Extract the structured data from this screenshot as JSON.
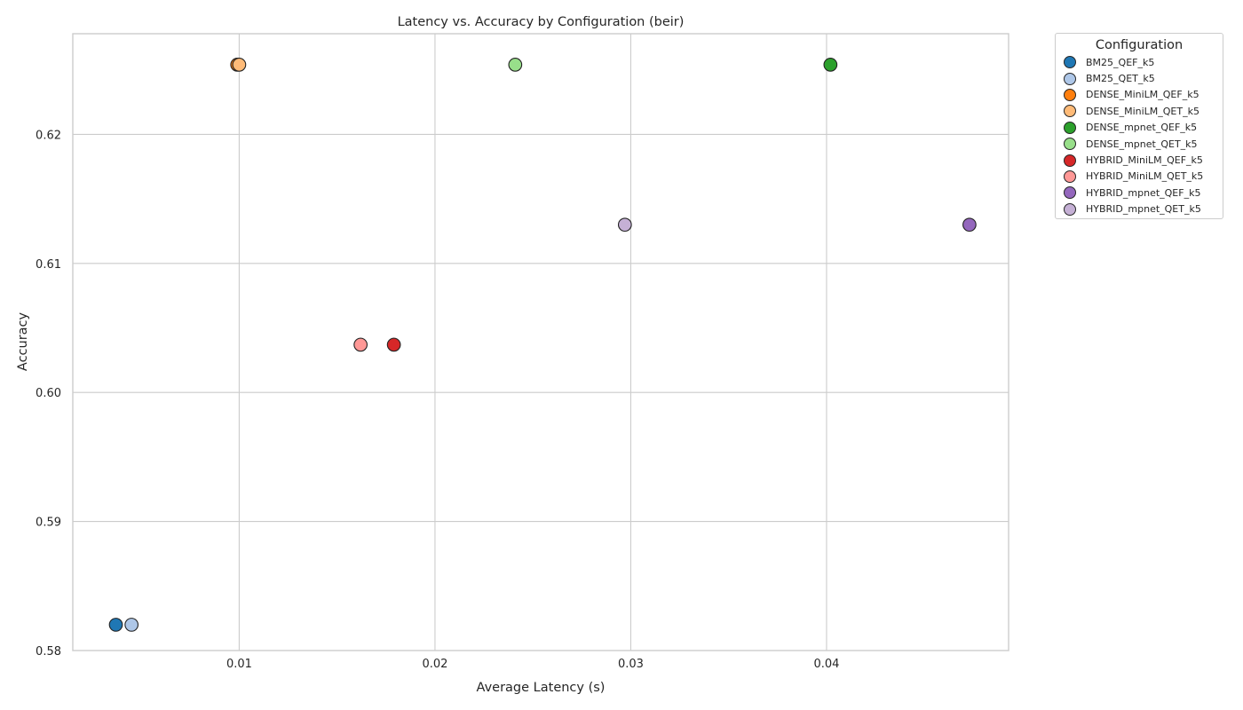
{
  "chart_data": {
    "type": "scatter",
    "title": "Latency vs. Accuracy by Configuration (beir)",
    "xlabel": "Average Latency (s)",
    "ylabel": "Accuracy",
    "xlim": [
      0.0015,
      0.0493
    ],
    "ylim": [
      0.58,
      0.6278
    ],
    "xticks": [
      0.01,
      0.02,
      0.03,
      0.04
    ],
    "xtick_labels": [
      "0.01",
      "0.02",
      "0.03",
      "0.04"
    ],
    "yticks": [
      0.58,
      0.59,
      0.6,
      0.61,
      0.62
    ],
    "ytick_labels": [
      "0.58",
      "0.59",
      "0.60",
      "0.61",
      "0.62"
    ],
    "grid": true,
    "legend": {
      "title": "Configuration",
      "placement": "outside-top-right"
    },
    "series": [
      {
        "name": "BM25_QEF_k5",
        "color": "#1f77b4",
        "x": [
          0.0037
        ],
        "y": [
          0.582
        ]
      },
      {
        "name": "BM25_QET_k5",
        "color": "#aec7e8",
        "x": [
          0.0045
        ],
        "y": [
          0.582
        ]
      },
      {
        "name": "DENSE_MiniLM_QEF_k5",
        "color": "#ff7f0e",
        "x": [
          0.0099
        ],
        "y": [
          0.6254
        ]
      },
      {
        "name": "DENSE_MiniLM_QET_k5",
        "color": "#ffbb78",
        "x": [
          0.01
        ],
        "y": [
          0.6254
        ]
      },
      {
        "name": "DENSE_mpnet_QEF_k5",
        "color": "#2ca02c",
        "x": [
          0.0402
        ],
        "y": [
          0.6254
        ]
      },
      {
        "name": "DENSE_mpnet_QET_k5",
        "color": "#98df8a",
        "x": [
          0.0241
        ],
        "y": [
          0.6254
        ]
      },
      {
        "name": "HYBRID_MiniLM_QEF_k5",
        "color": "#d62728",
        "x": [
          0.0179
        ],
        "y": [
          0.6037
        ]
      },
      {
        "name": "HYBRID_MiniLM_QET_k5",
        "color": "#ff9896",
        "x": [
          0.0162
        ],
        "y": [
          0.6037
        ]
      },
      {
        "name": "HYBRID_mpnet_QEF_k5",
        "color": "#9467bd",
        "x": [
          0.0473
        ],
        "y": [
          0.613
        ]
      },
      {
        "name": "HYBRID_mpnet_QET_k5",
        "color": "#c5b0d5",
        "x": [
          0.0297
        ],
        "y": [
          0.613
        ]
      }
    ]
  }
}
